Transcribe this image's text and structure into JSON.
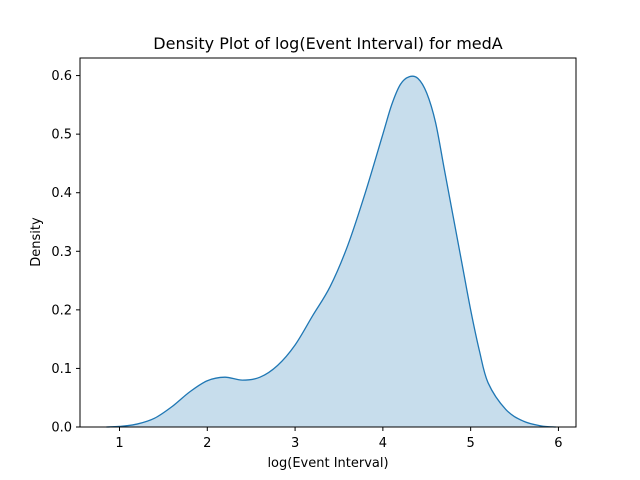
{
  "chart_data": {
    "type": "area",
    "title": "Density Plot of log(Event Interval) for medA",
    "xlabel": "log(Event Interval)",
    "ylabel": "Density",
    "xlim": [
      0.55,
      6.2
    ],
    "ylim": [
      0.0,
      0.63
    ],
    "xticks": [
      1,
      2,
      3,
      4,
      5,
      6
    ],
    "yticks": [
      0.0,
      0.1,
      0.2,
      0.3,
      0.4,
      0.5,
      0.6
    ],
    "xtick_labels": [
      "1",
      "2",
      "3",
      "4",
      "5",
      "6"
    ],
    "ytick_labels": [
      "0.0",
      "0.1",
      "0.2",
      "0.3",
      "0.4",
      "0.5",
      "0.6"
    ],
    "grid": false,
    "series": [
      {
        "line_color": "#1f77b4",
        "fill_color": "#1f77b4",
        "fill_opacity": 0.25,
        "x": [
          0.85,
          1.0,
          1.2,
          1.4,
          1.6,
          1.8,
          2.0,
          2.2,
          2.4,
          2.6,
          2.8,
          3.0,
          3.2,
          3.4,
          3.6,
          3.8,
          4.0,
          4.1,
          4.2,
          4.3,
          4.4,
          4.5,
          4.6,
          4.7,
          4.8,
          4.9,
          5.0,
          5.1,
          5.2,
          5.4,
          5.6,
          5.8,
          5.97
        ],
        "y": [
          0.0,
          0.001,
          0.005,
          0.015,
          0.035,
          0.06,
          0.079,
          0.085,
          0.08,
          0.085,
          0.105,
          0.14,
          0.19,
          0.24,
          0.31,
          0.4,
          0.5,
          0.55,
          0.585,
          0.598,
          0.595,
          0.57,
          0.52,
          0.44,
          0.36,
          0.28,
          0.2,
          0.13,
          0.075,
          0.03,
          0.01,
          0.002,
          0.0
        ]
      }
    ]
  }
}
